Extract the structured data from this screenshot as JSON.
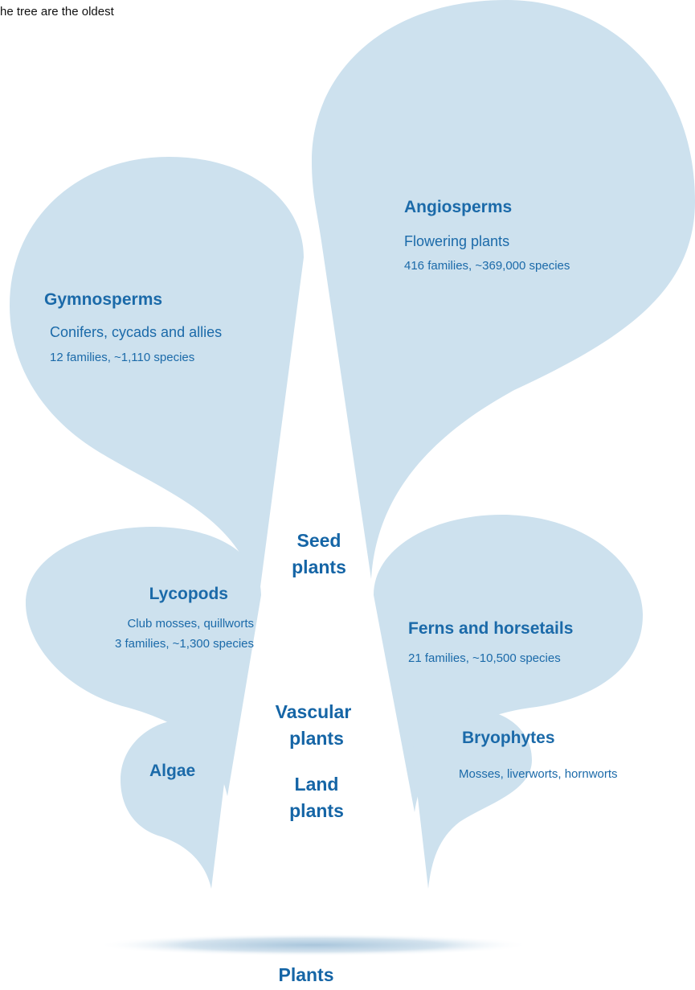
{
  "intro": "he tree are the oldest",
  "nodes": [
    {
      "label": "Angiosperms",
      "description": "Flowering plants",
      "stats": "416 families, ~369,000 species"
    },
    {
      "label": "Gymnosperms",
      "description": "Conifers, cycads and allies",
      "stats": "12 families, ~1,110 species"
    },
    {
      "label": "Lycopods",
      "description": "Club mosses, quillworts",
      "stats": "3 families, ~1,300 species"
    },
    {
      "label": "Ferns and horsetails",
      "stats": "21 families, ~10,500 species"
    },
    {
      "label": "Algae"
    },
    {
      "label": "Bryophytes",
      "description": "Mosses, liverworts, hornworts"
    }
  ],
  "clades": [
    {
      "lines": [
        "Seed",
        "plants"
      ]
    },
    {
      "lines": [
        "Vascular",
        "plants"
      ]
    },
    {
      "lines": [
        "Land",
        "plants"
      ]
    }
  ],
  "root": "Plants"
}
